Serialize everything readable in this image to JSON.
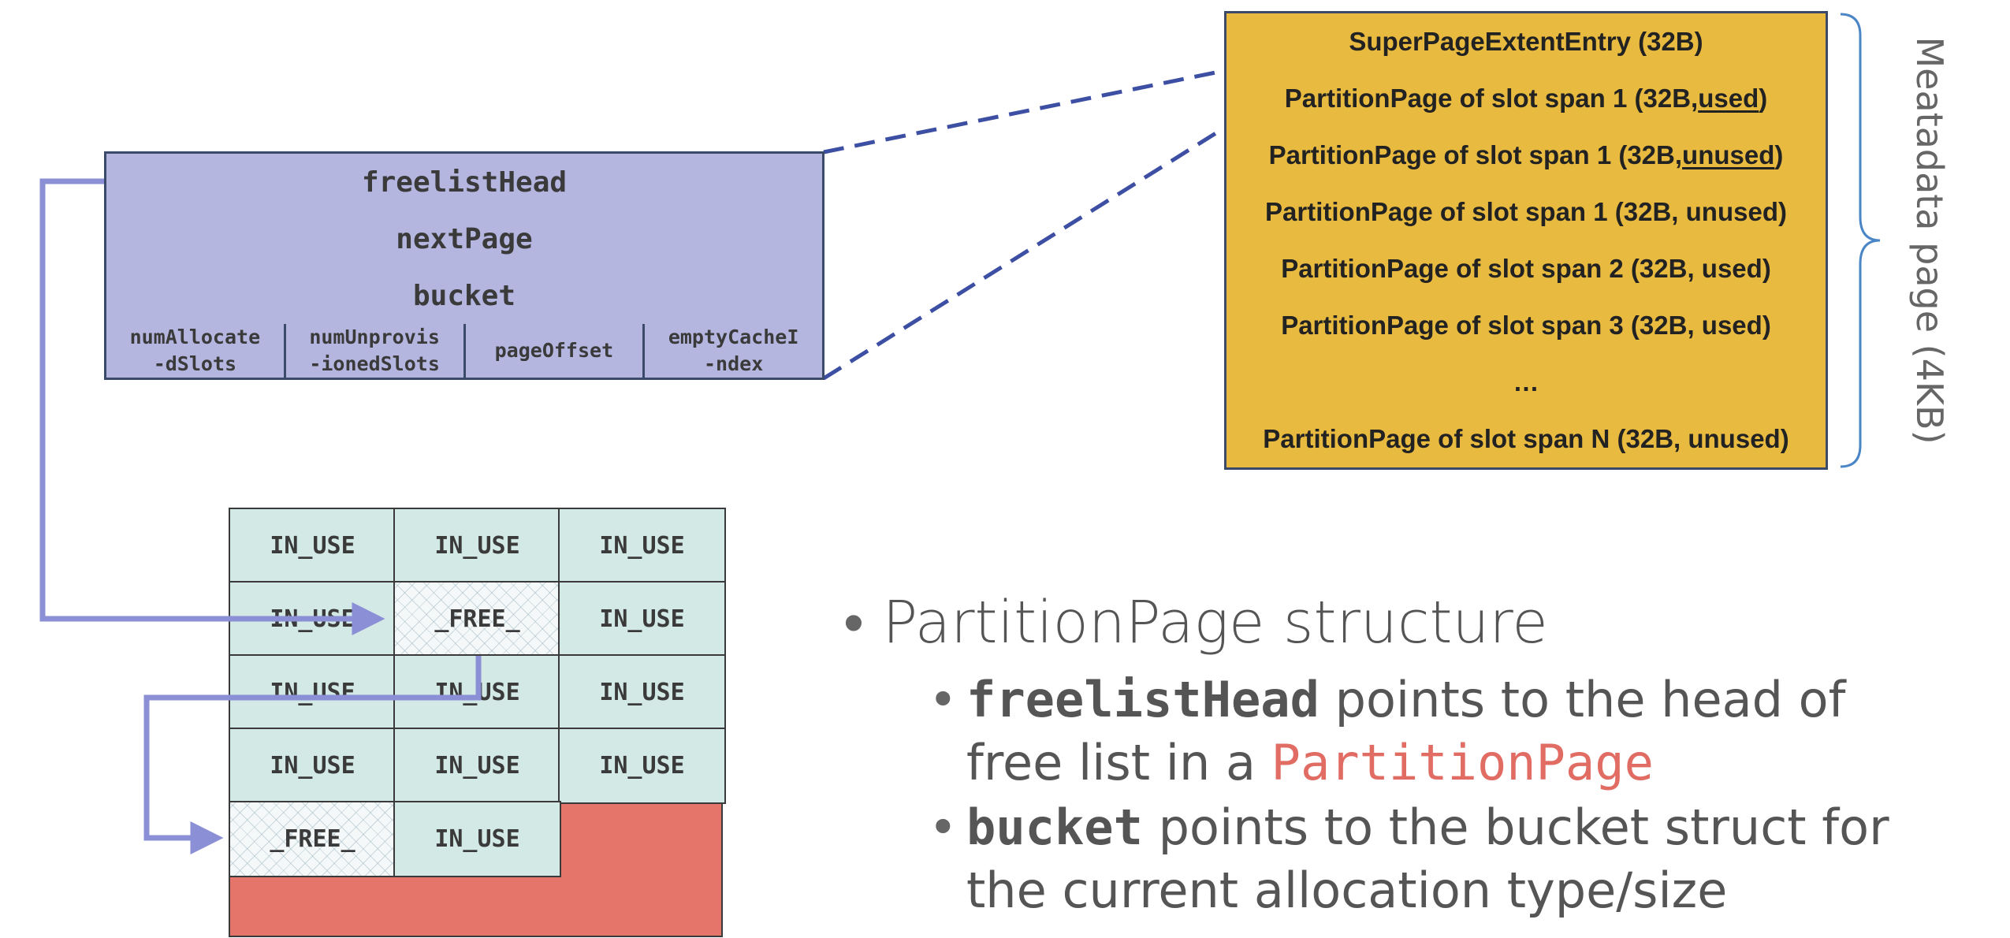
{
  "struct": {
    "fields": [
      "freelistHead",
      "nextPage",
      "bucket"
    ],
    "subfields": [
      "numAllocate\n-dSlots",
      "numUnprovis\n-ionedSlots",
      "pageOffset",
      "emptyCacheI\n-ndex"
    ]
  },
  "metadata": {
    "rows": [
      {
        "text": "SuperPageExtentEntry (32B)"
      },
      {
        "pre": "PartitionPage of slot span 1 (32B, ",
        "u": "used",
        "post": ")"
      },
      {
        "pre": "PartitionPage of slot span 1 (32B, ",
        "u": "unused",
        "post": ")"
      },
      {
        "text": "PartitionPage of slot span 1 (32B, unused)"
      },
      {
        "text": "PartitionPage of slot span 2 (32B, used)"
      },
      {
        "text": "PartitionPage of slot span 3 (32B, used)"
      },
      {
        "text": "…"
      },
      {
        "text": "PartitionPage of slot span N (32B, unused)"
      }
    ],
    "brace_label": "Meatadata page (4KB)"
  },
  "slots": [
    [
      "IN_USE",
      "IN_USE",
      "IN_USE"
    ],
    [
      "IN_USE",
      "_FREE_",
      "IN_USE"
    ],
    [
      "IN_USE",
      "IN_USE",
      "IN_USE"
    ],
    [
      "IN_USE",
      "IN_USE",
      "IN_USE"
    ],
    [
      "_FREE_",
      "IN_USE"
    ]
  ],
  "bullets": {
    "title": "PartitionPage structure",
    "sub1": {
      "code": "freelistHead",
      "text1": " points to the head of",
      "text2": "free list in a ",
      "code2": "PartitionPage"
    },
    "sub2": {
      "code": "bucket",
      "text1": " points to the bucket struct for",
      "text2": "the current allocation type/size"
    }
  },
  "colors": {
    "struct_fill": "#b4b6e0",
    "metadata_fill": "#e8bb40",
    "slot_fill": "#d3e9e5",
    "unprovisioned_fill": "#e5756a",
    "arrow": "#8b8fd6",
    "dashed_line": "#3d4fa3",
    "brace": "#4a86c5",
    "highlight_code": "#e06c63"
  }
}
